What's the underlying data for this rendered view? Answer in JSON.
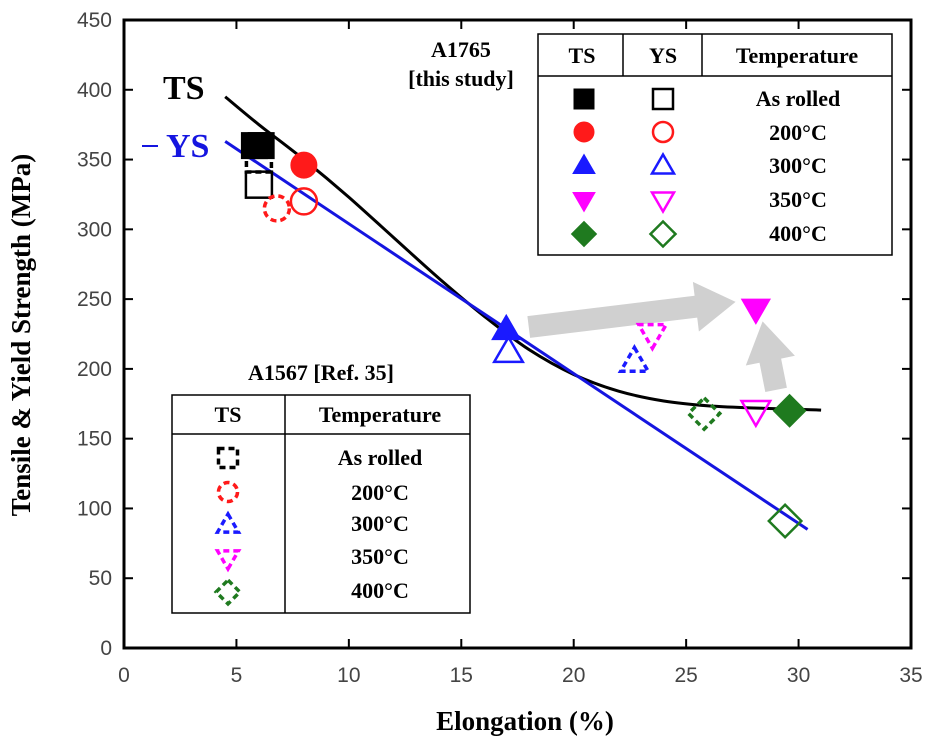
{
  "chart_data": {
    "type": "scatter",
    "title": "",
    "xlabel": "Elongation (%)",
    "ylabel": "Tensile & Yield Strength (MPa)",
    "xlim": [
      0,
      35
    ],
    "ylim": [
      0,
      450
    ],
    "x_ticks": [
      0,
      5,
      10,
      15,
      20,
      25,
      30,
      35
    ],
    "y_ticks": [
      0,
      50,
      100,
      150,
      200,
      250,
      300,
      350,
      400,
      450
    ],
    "grid": false,
    "colors": {
      "black": "#000000",
      "red": "#ff1a1a",
      "blue": "#1a1aff",
      "magenta": "#ff00ff",
      "green": "#1f7a1f",
      "arrow": "#d0d0d0",
      "ys_line": "#1515e0"
    },
    "curve_labels": {
      "ts": "TS",
      "ys": "YS"
    },
    "fit_curves": [
      {
        "name": "TS",
        "color": "#000000",
        "points": [
          [
            4.5,
            395
          ],
          [
            6,
            375
          ],
          [
            8,
            350
          ],
          [
            10,
            323
          ],
          [
            12,
            294
          ],
          [
            14,
            265
          ],
          [
            16,
            238
          ],
          [
            18,
            214
          ],
          [
            20,
            196
          ],
          [
            22,
            184
          ],
          [
            24,
            177
          ],
          [
            26,
            173.5
          ],
          [
            28,
            172
          ],
          [
            30,
            171
          ],
          [
            31,
            170.5
          ]
        ]
      },
      {
        "name": "YS",
        "color": "#1515e0",
        "points": [
          [
            4.5,
            363
          ],
          [
            30.4,
            85
          ]
        ]
      }
    ],
    "series": [
      {
        "group": "A1765",
        "kind": "TS",
        "temperature": "As rolled",
        "marker": "square",
        "fill": true,
        "color": "#000000",
        "points": [
          [
            5.8,
            360
          ],
          [
            6.1,
            360
          ]
        ]
      },
      {
        "group": "A1765",
        "kind": "YS",
        "temperature": "As rolled",
        "marker": "square",
        "fill": false,
        "color": "#000000",
        "points": [
          [
            6.0,
            332
          ]
        ]
      },
      {
        "group": "A1765",
        "kind": "TS",
        "temperature": "200°C",
        "marker": "circle",
        "fill": true,
        "color": "#ff1a1a",
        "points": [
          [
            8.0,
            346
          ]
        ]
      },
      {
        "group": "A1765",
        "kind": "YS",
        "temperature": "200°C",
        "marker": "circle",
        "fill": false,
        "color": "#ff1a1a",
        "points": [
          [
            8.0,
            320
          ]
        ]
      },
      {
        "group": "A1765",
        "kind": "TS",
        "temperature": "300°C",
        "marker": "triangle-up",
        "fill": true,
        "color": "#1a1aff",
        "points": [
          [
            17.0,
            228
          ]
        ]
      },
      {
        "group": "A1765",
        "kind": "YS",
        "temperature": "300°C",
        "marker": "triangle-up",
        "fill": false,
        "color": "#1a1aff",
        "points": [
          [
            17.1,
            212
          ]
        ]
      },
      {
        "group": "A1765",
        "kind": "TS",
        "temperature": "350°C",
        "marker": "triangle-down",
        "fill": true,
        "color": "#ff00ff",
        "points": [
          [
            28.1,
            243
          ]
        ]
      },
      {
        "group": "A1765",
        "kind": "YS",
        "temperature": "350°C",
        "marker": "triangle-down",
        "fill": false,
        "color": "#ff00ff",
        "points": [
          [
            28.1,
            170
          ]
        ]
      },
      {
        "group": "A1765",
        "kind": "TS",
        "temperature": "400°C",
        "marker": "diamond",
        "fill": true,
        "color": "#1f7a1f",
        "points": [
          [
            29.6,
            170
          ]
        ]
      },
      {
        "group": "A1765",
        "kind": "YS",
        "temperature": "400°C",
        "marker": "diamond",
        "fill": false,
        "color": "#1f7a1f",
        "points": [
          [
            29.4,
            91
          ]
        ]
      },
      {
        "group": "A1567",
        "kind": "TS",
        "temperature": "As rolled",
        "marker": "square",
        "fill": false,
        "dashed": true,
        "color": "#000000",
        "points": [
          [
            6.0,
            350
          ]
        ]
      },
      {
        "group": "A1567",
        "kind": "TS",
        "temperature": "200°C",
        "marker": "circle",
        "fill": false,
        "dashed": true,
        "color": "#ff1a1a",
        "points": [
          [
            6.8,
            315
          ]
        ]
      },
      {
        "group": "A1567",
        "kind": "TS",
        "temperature": "300°C",
        "marker": "triangle-up",
        "fill": false,
        "dashed": true,
        "color": "#1a1aff",
        "points": [
          [
            22.7,
            205
          ]
        ]
      },
      {
        "group": "A1567",
        "kind": "TS",
        "temperature": "350°C",
        "marker": "triangle-down",
        "fill": false,
        "dashed": true,
        "color": "#ff00ff",
        "points": [
          [
            23.5,
            225
          ]
        ]
      },
      {
        "group": "A1567",
        "kind": "TS",
        "temperature": "400°C",
        "marker": "diamond",
        "fill": false,
        "dashed": true,
        "color": "#1f7a1f",
        "points": [
          [
            25.8,
            168
          ]
        ]
      }
    ],
    "arrows": [
      {
        "from": [
          18.0,
          230
        ],
        "to": [
          27.2,
          248
        ]
      },
      {
        "from": [
          29.0,
          185
        ],
        "to": [
          28.4,
          234
        ]
      }
    ],
    "legends": [
      {
        "title_lines": [
          "A1765",
          "[this study]"
        ],
        "placement": "top-right",
        "headers": [
          "TS",
          "YS",
          "Temperature"
        ],
        "rows": [
          {
            "marker": "square",
            "color": "#000000",
            "temperature": "As rolled"
          },
          {
            "marker": "circle",
            "color": "#ff1a1a",
            "temperature": "200°C"
          },
          {
            "marker": "triangle-up",
            "color": "#1a1aff",
            "temperature": "300°C"
          },
          {
            "marker": "triangle-down",
            "color": "#ff00ff",
            "temperature": "350°C"
          },
          {
            "marker": "diamond",
            "color": "#1f7a1f",
            "temperature": "400°C"
          }
        ]
      },
      {
        "title": "A1567 [Ref. 35]",
        "placement": "bottom-left",
        "headers": [
          "TS",
          "Temperature"
        ],
        "rows": [
          {
            "marker": "square",
            "color": "#000000",
            "temperature": "As rolled"
          },
          {
            "marker": "circle",
            "color": "#ff1a1a",
            "temperature": "200°C"
          },
          {
            "marker": "triangle-up",
            "color": "#1a1aff",
            "temperature": "300°C"
          },
          {
            "marker": "triangle-down",
            "color": "#ff00ff",
            "temperature": "350°C"
          },
          {
            "marker": "diamond",
            "color": "#1f7a1f",
            "temperature": "400°C"
          }
        ]
      }
    ]
  }
}
